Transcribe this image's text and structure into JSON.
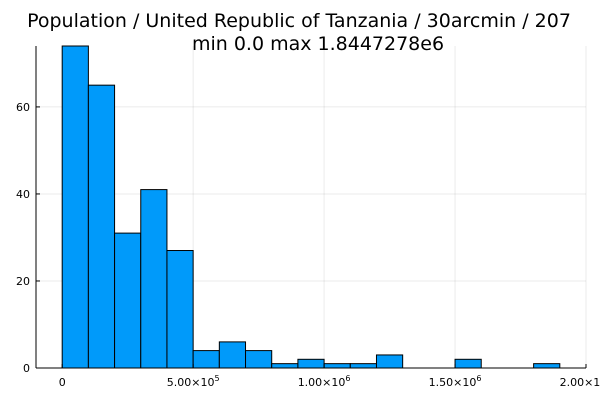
{
  "chart_data": {
    "type": "bar",
    "title": "Population / United Republic of Tanzania / 30arcmin / 207",
    "subtitle": "min 0.0  max 1.8447278e6",
    "xlabel": "",
    "ylabel": "",
    "bar_color": "#009AFA",
    "grid": true,
    "legend": "none",
    "bin_width": 100000,
    "bins_start": [
      0,
      100000,
      200000,
      300000,
      400000,
      500000,
      600000,
      700000,
      800000,
      900000,
      1000000,
      1100000,
      1200000,
      1300000,
      1400000,
      1500000,
      1600000,
      1700000,
      1800000
    ],
    "values": [
      74,
      65,
      31,
      41,
      27,
      4,
      6,
      4,
      1,
      2,
      1,
      1,
      3,
      0,
      0,
      2,
      0,
      0,
      1
    ],
    "xlim": [
      -100000,
      2000000
    ],
    "ylim": [
      0,
      74
    ],
    "x_ticks": [
      {
        "value": 0,
        "mantissa": "0",
        "exponent": ""
      },
      {
        "value": 500000,
        "mantissa": "5.00×10",
        "exponent": "5"
      },
      {
        "value": 1000000,
        "mantissa": "1.00×10",
        "exponent": "6"
      },
      {
        "value": 1500000,
        "mantissa": "1.50×10",
        "exponent": "6"
      },
      {
        "value": 2000000,
        "mantissa": "2.00×10",
        "exponent": "6"
      }
    ],
    "y_ticks": [
      0,
      20,
      40,
      60
    ]
  }
}
